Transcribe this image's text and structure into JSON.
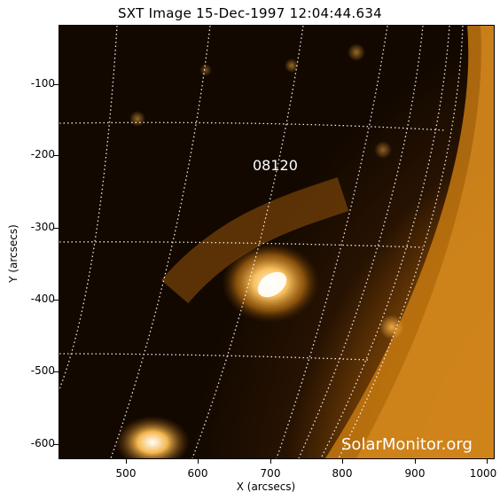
{
  "title": "SXT Image 15-Dec-1997 12:04:44.634",
  "axes": {
    "xlabel": "X (arcsecs)",
    "ylabel": "Y (arcsecs)",
    "xticks": [
      "500",
      "600",
      "700",
      "800",
      "900",
      "1000"
    ],
    "yticks": [
      "-100",
      "-200",
      "-300",
      "-400",
      "-500",
      "-600"
    ]
  },
  "region_label": "08120",
  "watermark": "SolarMonitor.org",
  "colors": {
    "background_sky": "#100700",
    "disk_glow": "#c77a10",
    "limb": "#e39a2a",
    "active_region": "#fff4d0",
    "grid": "#ffffff"
  }
}
